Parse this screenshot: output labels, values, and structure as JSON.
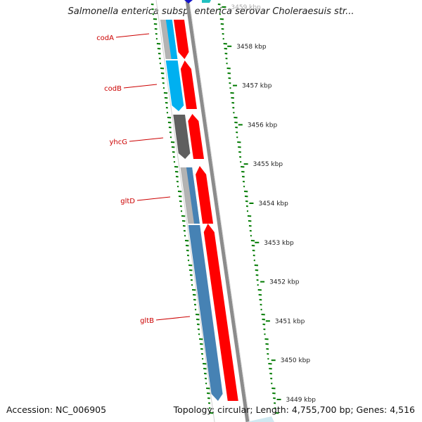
{
  "title": "Salmonella enterica subsp. enterica serovar Choleraesuis str...",
  "footer": {
    "accession": "Accession: NC_006905",
    "topology": "Topology: circular; Length: 4,755,700 bp; Genes: 4,516"
  },
  "colors": {
    "forward_gene": "#ff0000",
    "gene_cyan": "#00b0f0",
    "gene_gray": "#5f5f5f",
    "gene_steelblue": "#4682b4",
    "gene_lightgray": "#b3b3b3",
    "label": "#cc0000",
    "tick_green": "#007a00",
    "backbone": "#8c8c8c"
  },
  "ruler_labels": [
    "3459 kbp",
    "3458 kbp",
    "3457 kbp",
    "3456 kbp",
    "3455 kbp",
    "3454 kbp",
    "3453 kbp",
    "3452 kbp",
    "3451 kbp",
    "3450 kbp",
    "3449 kbp"
  ],
  "genes": [
    {
      "name": "codA",
      "strand": "reverse",
      "color": "cyan"
    },
    {
      "name": "codB",
      "strand": "reverse",
      "color": "cyan"
    },
    {
      "name": "yhcG",
      "strand": "reverse",
      "color": "gray"
    },
    {
      "name": "gltD",
      "strand": "reverse",
      "color": "steelblue"
    },
    {
      "name": "gltB",
      "strand": "reverse",
      "color": "steelblue"
    }
  ]
}
